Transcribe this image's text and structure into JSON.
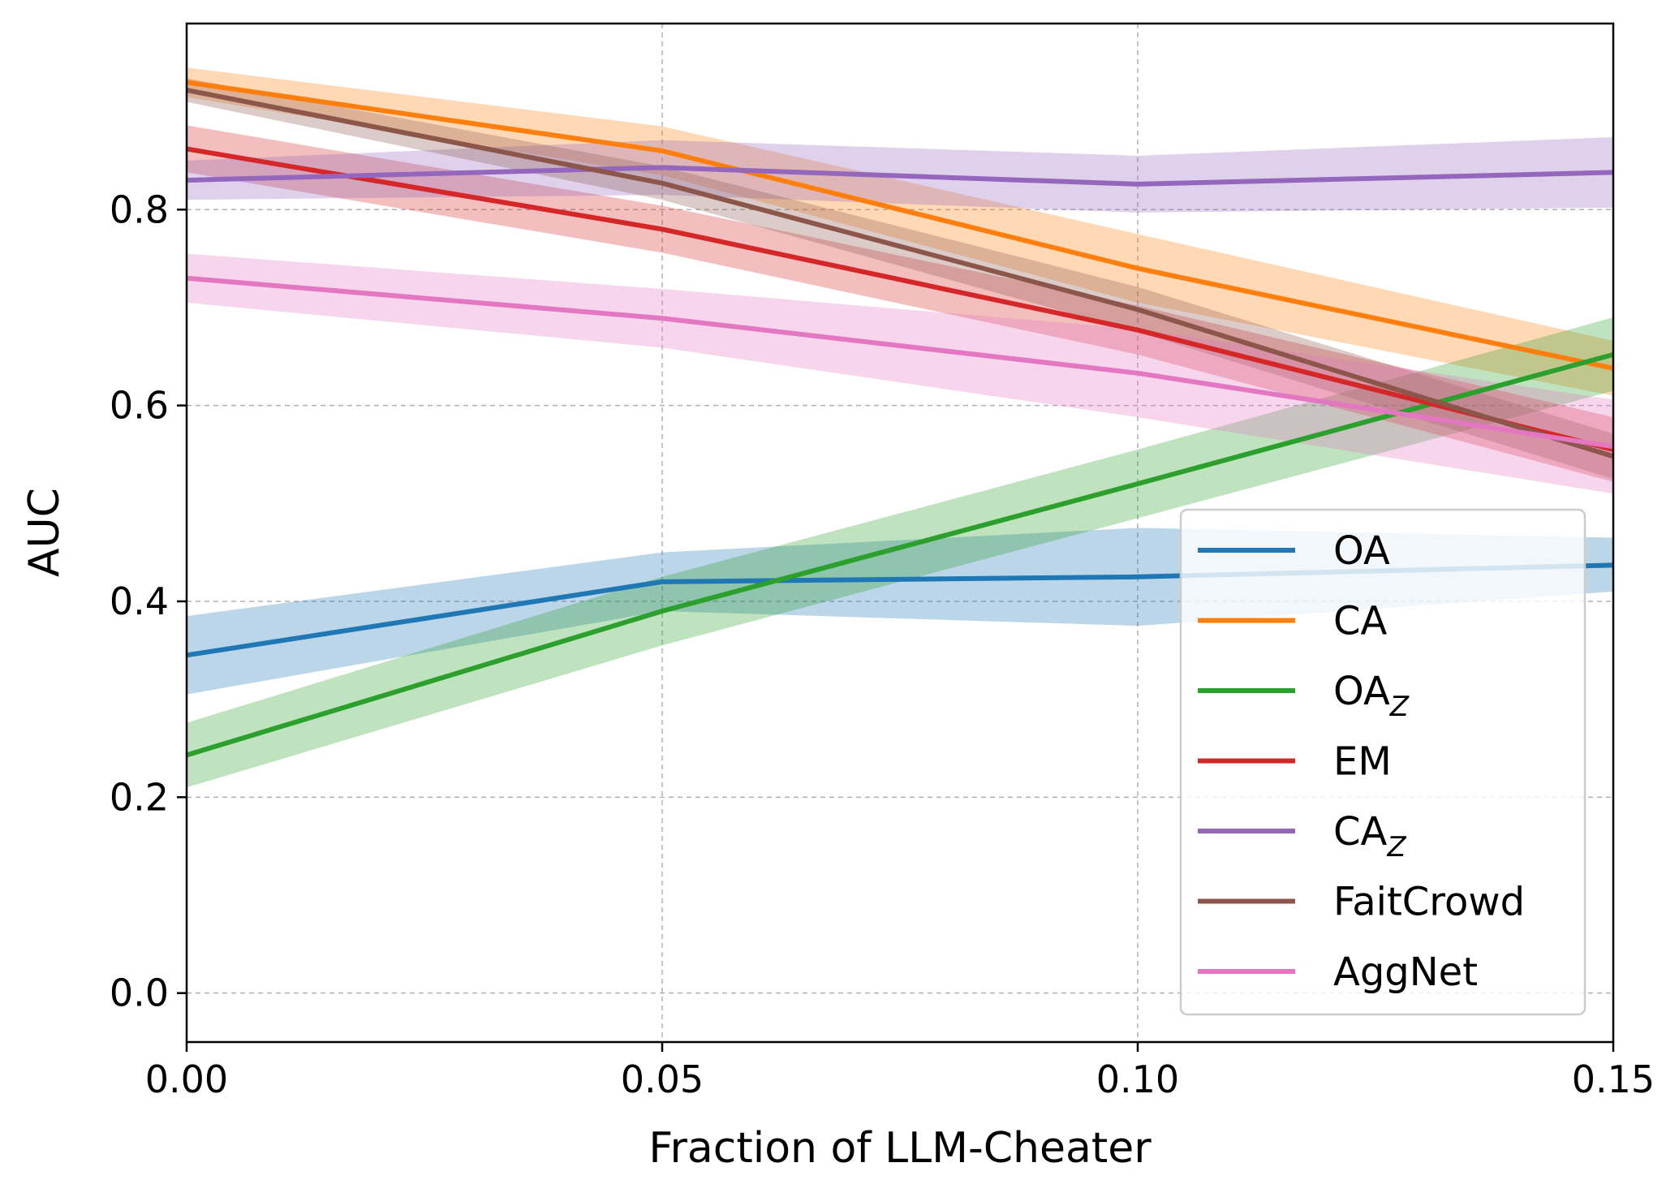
{
  "chart_data": {
    "type": "line",
    "xlabel": "Fraction of LLM-Cheater",
    "ylabel": "AUC",
    "xlim": [
      0.0,
      0.15
    ],
    "ylim": [
      -0.05,
      0.99
    ],
    "x": [
      0.0,
      0.05,
      0.1,
      0.15
    ],
    "x_ticks": [
      "0.00",
      "0.05",
      "0.10",
      "0.15"
    ],
    "y_ticks": [
      "0.0",
      "0.2",
      "0.4",
      "0.6",
      "0.8"
    ],
    "y_tick_values": [
      0.0,
      0.2,
      0.4,
      0.6,
      0.8
    ],
    "grid": true,
    "legend_position": "lower-right",
    "series": [
      {
        "name": "OA",
        "subscript": "",
        "color": "#1f77b4",
        "values": [
          0.345,
          0.42,
          0.425,
          0.437
        ],
        "lower": [
          0.305,
          0.39,
          0.375,
          0.41
        ],
        "upper": [
          0.385,
          0.45,
          0.475,
          0.465
        ]
      },
      {
        "name": "CA",
        "subscript": "",
        "color": "#ff7f0e",
        "values": [
          0.93,
          0.86,
          0.74,
          0.638
        ],
        "lower": [
          0.915,
          0.835,
          0.705,
          0.61
        ],
        "upper": [
          0.945,
          0.885,
          0.775,
          0.666
        ]
      },
      {
        "name": "OA",
        "subscript": "Z",
        "color": "#2ca02c",
        "values": [
          0.243,
          0.39,
          0.52,
          0.652
        ],
        "lower": [
          0.21,
          0.355,
          0.485,
          0.615
        ],
        "upper": [
          0.276,
          0.425,
          0.555,
          0.69
        ]
      },
      {
        "name": "EM",
        "subscript": "",
        "color": "#d62728",
        "values": [
          0.862,
          0.78,
          0.677,
          0.555
        ],
        "lower": [
          0.838,
          0.756,
          0.652,
          0.522
        ],
        "upper": [
          0.886,
          0.804,
          0.702,
          0.588
        ]
      },
      {
        "name": "CA",
        "subscript": "Z",
        "color": "#9467bd",
        "values": [
          0.83,
          0.843,
          0.826,
          0.838
        ],
        "lower": [
          0.81,
          0.815,
          0.797,
          0.802
        ],
        "upper": [
          0.85,
          0.871,
          0.855,
          0.874
        ]
      },
      {
        "name": "FaitCrowd",
        "subscript": "",
        "color": "#8c564b",
        "values": [
          0.922,
          0.827,
          0.698,
          0.548
        ],
        "lower": [
          0.91,
          0.81,
          0.675,
          0.525
        ],
        "upper": [
          0.934,
          0.844,
          0.721,
          0.571
        ]
      },
      {
        "name": "AggNet",
        "subscript": "",
        "color": "#e377c2",
        "values": [
          0.73,
          0.689,
          0.633,
          0.558
        ],
        "lower": [
          0.705,
          0.659,
          0.588,
          0.51
        ],
        "upper": [
          0.755,
          0.719,
          0.678,
          0.606
        ]
      }
    ]
  }
}
